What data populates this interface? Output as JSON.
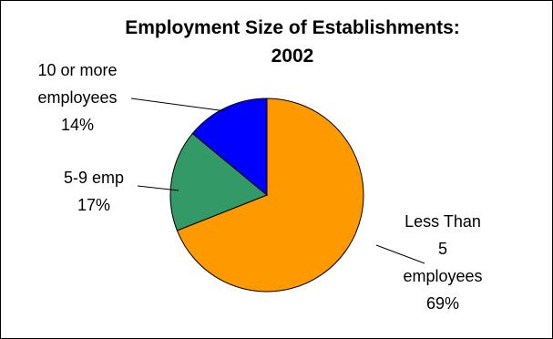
{
  "chart_data": {
    "type": "pie",
    "title": "Employment Size of Establishments: 2002",
    "title_lines": [
      "Employment Size of Establishments:",
      "2002"
    ],
    "slices": [
      {
        "category": "Less Than 5 employees",
        "label_lines": [
          "Less Than",
          "5",
          "employees"
        ],
        "percent_label": "69%",
        "value": 69,
        "color": "#FF9900"
      },
      {
        "category": "5-9 emp",
        "label_lines": [
          "5-9 emp"
        ],
        "percent_label": "17%",
        "value": 17,
        "color": "#339966"
      },
      {
        "category": "10 or more employees",
        "label_lines": [
          "10 or more",
          "employees"
        ],
        "percent_label": "14%",
        "value": 14,
        "color": "#0000FF"
      }
    ],
    "legend": "none",
    "start_angle_deg": 0,
    "direction": "clockwise"
  }
}
